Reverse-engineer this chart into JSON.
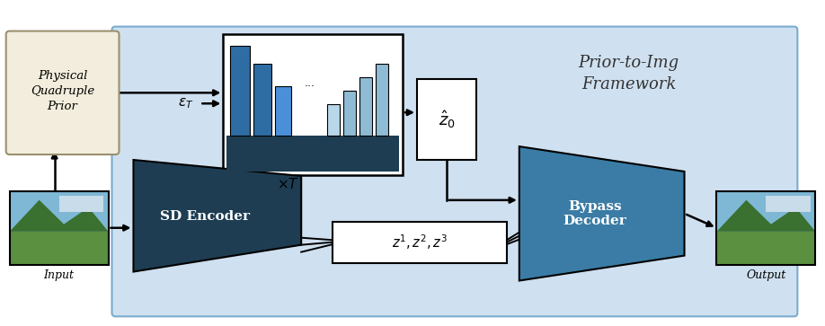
{
  "fig_width": 9.18,
  "fig_height": 3.63,
  "bg_color": "#ffffff",
  "light_blue_bg": "#cfe0f0",
  "dark_blue_encoder": "#1e3d52",
  "medium_blue_decoder": "#3a7ca5",
  "box_bg": "#ffffff",
  "prior_box_bg": "#f2eddc",
  "unet_dark": "#1e3d52",
  "unet_blue1": "#2e6da4",
  "unet_blue2": "#4a90d9",
  "unet_light": "#8fbcd4",
  "unet_lighter": "#b8d8ea",
  "title_text": "Prior-to-Img\nFramework",
  "encoder_text": "SD Encoder",
  "decoder_text": "Bypass\nDecoder",
  "prior_text": "Physical\nQuadruple\nPrior",
  "z0_text": "$\\hat{z}_0$",
  "eps_text": "$\\epsilon_T$",
  "xT_text": "$\\times T$",
  "z123_text": "$z^1, z^2, z^3$",
  "input_label": "Input",
  "output_label": "Output"
}
